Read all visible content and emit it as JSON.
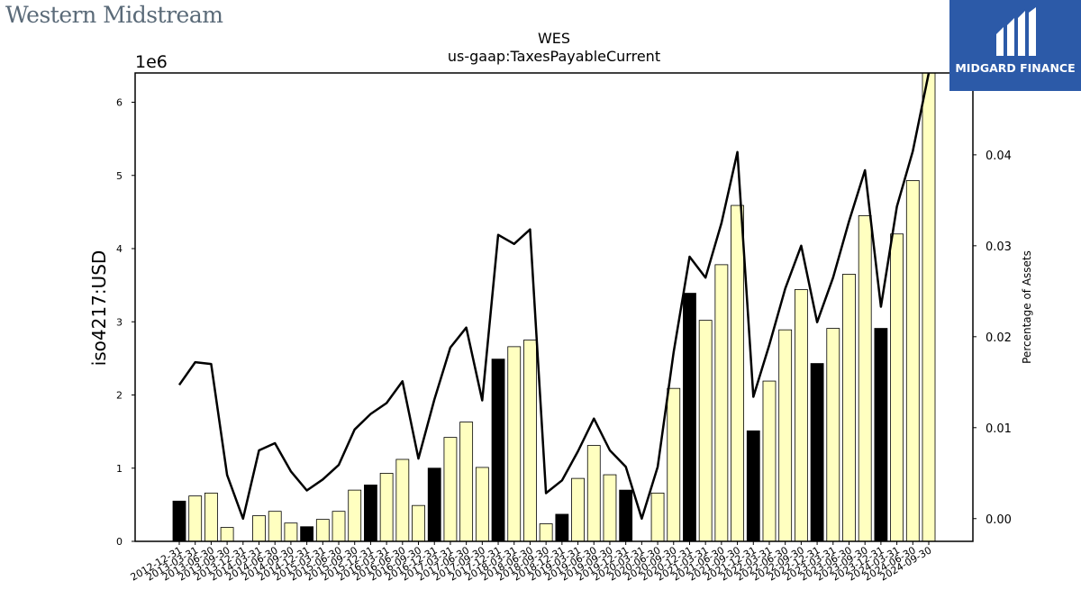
{
  "brand": {
    "company": "Western Midstream",
    "logo_text": "MIDGARD FINANCE"
  },
  "chart_data": {
    "type": "bar",
    "title": "WES",
    "subtitle": "us-gaap:TaxesPayableCurrent",
    "ylabel": "iso4217:USD",
    "y_offset_label": "1e6",
    "y2label": "Percentage of Assets",
    "ylim": [
      0,
      6400000
    ],
    "y2lim": [
      -0.0025,
      0.049
    ],
    "yticks": [
      0,
      1000000,
      2000000,
      3000000,
      4000000,
      5000000,
      6000000
    ],
    "ytick_labels": [
      "0",
      "1",
      "2",
      "3",
      "4",
      "5",
      "6"
    ],
    "y2ticks": [
      0.0,
      0.01,
      0.02,
      0.03,
      0.04
    ],
    "y2tick_labels": [
      "0.00",
      "0.01",
      "0.02",
      "0.03",
      "0.04"
    ],
    "categories": [
      "2012-12-31",
      "2013-03-31",
      "2013-06-30",
      "2013-09-30",
      "2013-12-31",
      "2014-03-31",
      "2014-06-30",
      "2014-09-30",
      "2014-12-31",
      "2015-03-31",
      "2015-06-30",
      "2015-09-30",
      "2015-12-31",
      "2016-03-31",
      "2016-06-30",
      "2016-09-30",
      "2016-12-31",
      "2017-03-31",
      "2017-06-30",
      "2017-09-30",
      "2017-12-31",
      "2018-03-31",
      "2018-06-30",
      "2018-09-30",
      "2018-12-31",
      "2019-03-31",
      "2019-06-30",
      "2019-09-30",
      "2019-12-31",
      "2020-03-31",
      "2020-06-30",
      "2020-09-30",
      "2020-12-31",
      "2021-03-31",
      "2021-06-30",
      "2021-09-30",
      "2021-12-31",
      "2022-03-31",
      "2022-06-30",
      "2022-09-30",
      "2022-12-31",
      "2023-03-31",
      "2023-06-30",
      "2023-09-30",
      "2023-12-31",
      "2024-03-31",
      "2024-06-30",
      "2024-09-30"
    ],
    "series": [
      {
        "values": [
          550000,
          620000,
          660000,
          190000,
          0,
          350000,
          410000,
          250000,
          200000,
          300000,
          410000,
          700000,
          770000,
          930000,
          1120000,
          490000,
          1000000,
          1420000,
          1630000,
          1010000,
          2490000,
          2660000,
          2750000,
          240000,
          370000,
          860000,
          1310000,
          910000,
          700000,
          0,
          660000,
          2090000,
          3390000,
          3020000,
          3780000,
          4590000,
          1510000,
          2190000,
          2890000,
          3440000,
          2430000,
          2910000,
          3650000,
          4450000,
          2910000,
          4200000,
          4930000,
          6400000
        ],
        "year_end": [
          true,
          false,
          false,
          false,
          true,
          false,
          false,
          false,
          true,
          false,
          false,
          false,
          true,
          false,
          false,
          false,
          true,
          false,
          false,
          false,
          true,
          false,
          false,
          false,
          true,
          false,
          false,
          false,
          true,
          false,
          false,
          false,
          true,
          false,
          false,
          false,
          true,
          false,
          false,
          false,
          true,
          false,
          false,
          false,
          true,
          false,
          false,
          false
        ]
      },
      {
        "axis": "right",
        "values": [
          0.0147,
          0.0172,
          0.017,
          0.0048,
          0.0,
          0.0075,
          0.0083,
          0.0052,
          0.0031,
          0.0043,
          0.0059,
          0.0098,
          0.0115,
          0.0127,
          0.0151,
          0.0066,
          0.0131,
          0.0188,
          0.021,
          0.013,
          0.0312,
          0.0302,
          0.0318,
          0.0028,
          0.0042,
          0.0074,
          0.011,
          0.0075,
          0.0057,
          0.0,
          0.0057,
          0.0183,
          0.0288,
          0.0265,
          0.0325,
          0.0403,
          0.0134,
          0.0191,
          0.0253,
          0.03,
          0.0216,
          0.0265,
          0.0327,
          0.0383,
          0.0233,
          0.0343,
          0.0404,
          0.049
        ]
      }
    ],
    "colors": {
      "bar_fill": "#ffffc0",
      "bar_year_end": "#000000",
      "line": "#000000",
      "logo_bg": "#2c5aa8"
    }
  }
}
